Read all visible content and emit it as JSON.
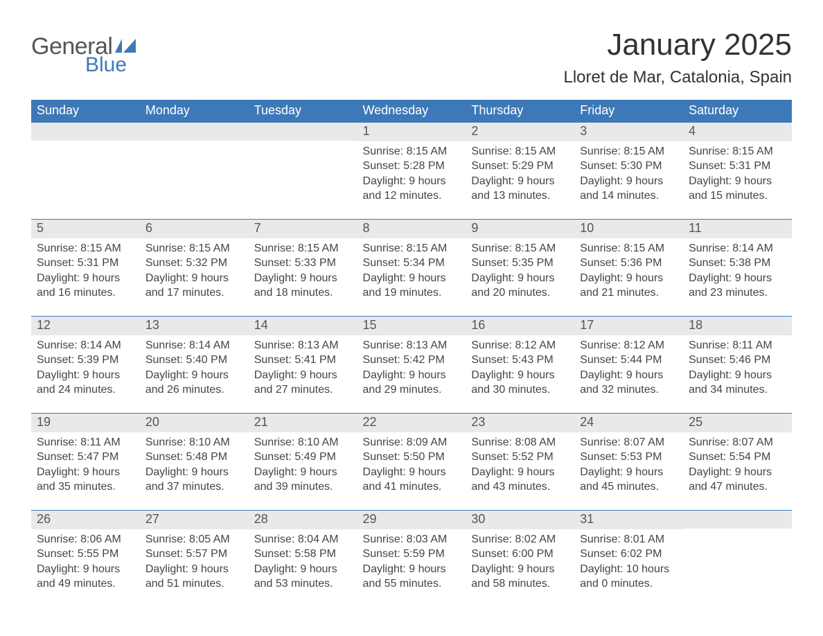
{
  "logo": {
    "word1": "General",
    "word2": "Blue"
  },
  "title": "January 2025",
  "location": "Lloret de Mar, Catalonia, Spain",
  "colors": {
    "header_bg": "#3d79b8",
    "header_text": "#ffffff",
    "daynum_bg": "#e9e9e9",
    "daynum_text": "#555555",
    "body_text": "#444444",
    "rule": "#3d79b8",
    "page_bg": "#ffffff",
    "logo_gray": "#555555",
    "logo_blue": "#3d79b8"
  },
  "typography": {
    "title_fontsize": 44,
    "location_fontsize": 24,
    "header_fontsize": 18,
    "daynum_fontsize": 18,
    "body_fontsize": 16
  },
  "layout": {
    "columns": 7,
    "rows": 5
  },
  "columns": [
    "Sunday",
    "Monday",
    "Tuesday",
    "Wednesday",
    "Thursday",
    "Friday",
    "Saturday"
  ],
  "days": [
    {
      "day": "",
      "sunrise": "",
      "sunset": "",
      "daylight1": "",
      "daylight2": ""
    },
    {
      "day": "",
      "sunrise": "",
      "sunset": "",
      "daylight1": "",
      "daylight2": ""
    },
    {
      "day": "",
      "sunrise": "",
      "sunset": "",
      "daylight1": "",
      "daylight2": ""
    },
    {
      "day": "1",
      "sunrise": "Sunrise: 8:15 AM",
      "sunset": "Sunset: 5:28 PM",
      "daylight1": "Daylight: 9 hours",
      "daylight2": "and 12 minutes."
    },
    {
      "day": "2",
      "sunrise": "Sunrise: 8:15 AM",
      "sunset": "Sunset: 5:29 PM",
      "daylight1": "Daylight: 9 hours",
      "daylight2": "and 13 minutes."
    },
    {
      "day": "3",
      "sunrise": "Sunrise: 8:15 AM",
      "sunset": "Sunset: 5:30 PM",
      "daylight1": "Daylight: 9 hours",
      "daylight2": "and 14 minutes."
    },
    {
      "day": "4",
      "sunrise": "Sunrise: 8:15 AM",
      "sunset": "Sunset: 5:31 PM",
      "daylight1": "Daylight: 9 hours",
      "daylight2": "and 15 minutes."
    },
    {
      "day": "5",
      "sunrise": "Sunrise: 8:15 AM",
      "sunset": "Sunset: 5:31 PM",
      "daylight1": "Daylight: 9 hours",
      "daylight2": "and 16 minutes."
    },
    {
      "day": "6",
      "sunrise": "Sunrise: 8:15 AM",
      "sunset": "Sunset: 5:32 PM",
      "daylight1": "Daylight: 9 hours",
      "daylight2": "and 17 minutes."
    },
    {
      "day": "7",
      "sunrise": "Sunrise: 8:15 AM",
      "sunset": "Sunset: 5:33 PM",
      "daylight1": "Daylight: 9 hours",
      "daylight2": "and 18 minutes."
    },
    {
      "day": "8",
      "sunrise": "Sunrise: 8:15 AM",
      "sunset": "Sunset: 5:34 PM",
      "daylight1": "Daylight: 9 hours",
      "daylight2": "and 19 minutes."
    },
    {
      "day": "9",
      "sunrise": "Sunrise: 8:15 AM",
      "sunset": "Sunset: 5:35 PM",
      "daylight1": "Daylight: 9 hours",
      "daylight2": "and 20 minutes."
    },
    {
      "day": "10",
      "sunrise": "Sunrise: 8:15 AM",
      "sunset": "Sunset: 5:36 PM",
      "daylight1": "Daylight: 9 hours",
      "daylight2": "and 21 minutes."
    },
    {
      "day": "11",
      "sunrise": "Sunrise: 8:14 AM",
      "sunset": "Sunset: 5:38 PM",
      "daylight1": "Daylight: 9 hours",
      "daylight2": "and 23 minutes."
    },
    {
      "day": "12",
      "sunrise": "Sunrise: 8:14 AM",
      "sunset": "Sunset: 5:39 PM",
      "daylight1": "Daylight: 9 hours",
      "daylight2": "and 24 minutes."
    },
    {
      "day": "13",
      "sunrise": "Sunrise: 8:14 AM",
      "sunset": "Sunset: 5:40 PM",
      "daylight1": "Daylight: 9 hours",
      "daylight2": "and 26 minutes."
    },
    {
      "day": "14",
      "sunrise": "Sunrise: 8:13 AM",
      "sunset": "Sunset: 5:41 PM",
      "daylight1": "Daylight: 9 hours",
      "daylight2": "and 27 minutes."
    },
    {
      "day": "15",
      "sunrise": "Sunrise: 8:13 AM",
      "sunset": "Sunset: 5:42 PM",
      "daylight1": "Daylight: 9 hours",
      "daylight2": "and 29 minutes."
    },
    {
      "day": "16",
      "sunrise": "Sunrise: 8:12 AM",
      "sunset": "Sunset: 5:43 PM",
      "daylight1": "Daylight: 9 hours",
      "daylight2": "and 30 minutes."
    },
    {
      "day": "17",
      "sunrise": "Sunrise: 8:12 AM",
      "sunset": "Sunset: 5:44 PM",
      "daylight1": "Daylight: 9 hours",
      "daylight2": "and 32 minutes."
    },
    {
      "day": "18",
      "sunrise": "Sunrise: 8:11 AM",
      "sunset": "Sunset: 5:46 PM",
      "daylight1": "Daylight: 9 hours",
      "daylight2": "and 34 minutes."
    },
    {
      "day": "19",
      "sunrise": "Sunrise: 8:11 AM",
      "sunset": "Sunset: 5:47 PM",
      "daylight1": "Daylight: 9 hours",
      "daylight2": "and 35 minutes."
    },
    {
      "day": "20",
      "sunrise": "Sunrise: 8:10 AM",
      "sunset": "Sunset: 5:48 PM",
      "daylight1": "Daylight: 9 hours",
      "daylight2": "and 37 minutes."
    },
    {
      "day": "21",
      "sunrise": "Sunrise: 8:10 AM",
      "sunset": "Sunset: 5:49 PM",
      "daylight1": "Daylight: 9 hours",
      "daylight2": "and 39 minutes."
    },
    {
      "day": "22",
      "sunrise": "Sunrise: 8:09 AM",
      "sunset": "Sunset: 5:50 PM",
      "daylight1": "Daylight: 9 hours",
      "daylight2": "and 41 minutes."
    },
    {
      "day": "23",
      "sunrise": "Sunrise: 8:08 AM",
      "sunset": "Sunset: 5:52 PM",
      "daylight1": "Daylight: 9 hours",
      "daylight2": "and 43 minutes."
    },
    {
      "day": "24",
      "sunrise": "Sunrise: 8:07 AM",
      "sunset": "Sunset: 5:53 PM",
      "daylight1": "Daylight: 9 hours",
      "daylight2": "and 45 minutes."
    },
    {
      "day": "25",
      "sunrise": "Sunrise: 8:07 AM",
      "sunset": "Sunset: 5:54 PM",
      "daylight1": "Daylight: 9 hours",
      "daylight2": "and 47 minutes."
    },
    {
      "day": "26",
      "sunrise": "Sunrise: 8:06 AM",
      "sunset": "Sunset: 5:55 PM",
      "daylight1": "Daylight: 9 hours",
      "daylight2": "and 49 minutes."
    },
    {
      "day": "27",
      "sunrise": "Sunrise: 8:05 AM",
      "sunset": "Sunset: 5:57 PM",
      "daylight1": "Daylight: 9 hours",
      "daylight2": "and 51 minutes."
    },
    {
      "day": "28",
      "sunrise": "Sunrise: 8:04 AM",
      "sunset": "Sunset: 5:58 PM",
      "daylight1": "Daylight: 9 hours",
      "daylight2": "and 53 minutes."
    },
    {
      "day": "29",
      "sunrise": "Sunrise: 8:03 AM",
      "sunset": "Sunset: 5:59 PM",
      "daylight1": "Daylight: 9 hours",
      "daylight2": "and 55 minutes."
    },
    {
      "day": "30",
      "sunrise": "Sunrise: 8:02 AM",
      "sunset": "Sunset: 6:00 PM",
      "daylight1": "Daylight: 9 hours",
      "daylight2": "and 58 minutes."
    },
    {
      "day": "31",
      "sunrise": "Sunrise: 8:01 AM",
      "sunset": "Sunset: 6:02 PM",
      "daylight1": "Daylight: 10 hours",
      "daylight2": "and 0 minutes."
    },
    {
      "day": "",
      "sunrise": "",
      "sunset": "",
      "daylight1": "",
      "daylight2": ""
    }
  ]
}
